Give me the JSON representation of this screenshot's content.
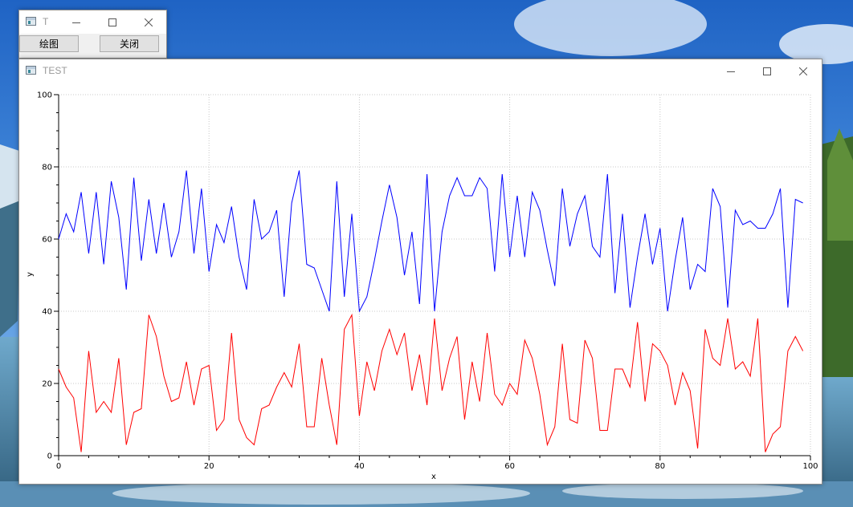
{
  "small_window": {
    "title": "T",
    "draw_button": "绘图",
    "close_button": "关闭"
  },
  "main_window": {
    "title": "TEST"
  },
  "chart_data": {
    "type": "line",
    "xlabel": "x",
    "ylabel": "y",
    "xlim": [
      0,
      100
    ],
    "ylim": [
      0,
      100
    ],
    "x_ticks": [
      0,
      20,
      40,
      60,
      80,
      100
    ],
    "y_ticks": [
      0,
      20,
      40,
      60,
      80,
      100
    ],
    "grid": true,
    "series": [
      {
        "color": "#0000ff",
        "values": [
          60,
          67,
          62,
          73,
          56,
          73,
          53,
          76,
          66,
          46,
          77,
          54,
          71,
          56,
          70,
          55,
          62,
          79,
          56,
          74,
          51,
          64,
          59,
          69,
          55,
          46,
          71,
          60,
          62,
          68,
          44,
          70,
          79,
          53,
          52,
          46,
          40,
          76,
          44,
          67,
          40,
          44,
          54,
          65,
          75,
          66,
          50,
          62,
          42,
          78,
          40,
          62,
          72,
          77,
          72,
          72,
          77,
          74,
          51,
          78,
          55,
          72,
          55,
          73,
          68,
          57,
          47,
          74,
          58,
          67,
          72,
          58,
          55,
          78,
          45,
          67,
          41,
          55,
          67,
          53,
          63,
          40,
          54,
          66,
          46,
          53,
          51,
          74,
          69,
          41,
          68,
          64,
          65,
          63,
          63,
          67,
          74,
          41,
          71,
          70
        ]
      },
      {
        "color": "#ff0000",
        "values": [
          24,
          19,
          16,
          1,
          29,
          12,
          15,
          12,
          27,
          3,
          12,
          13,
          39,
          33,
          22,
          15,
          16,
          26,
          14,
          24,
          25,
          7,
          10,
          34,
          10,
          5,
          3,
          13,
          14,
          19,
          23,
          19,
          31,
          8,
          8,
          27,
          14,
          3,
          35,
          39,
          11,
          26,
          18,
          29,
          35,
          28,
          34,
          18,
          28,
          14,
          38,
          18,
          27,
          33,
          10,
          26,
          15,
          34,
          17,
          14,
          20,
          17,
          32,
          27,
          17,
          3,
          8,
          31,
          10,
          9,
          32,
          27,
          7,
          7,
          24,
          24,
          19,
          37,
          15,
          31,
          29,
          25,
          14,
          23,
          18,
          2,
          35,
          27,
          25,
          38,
          24,
          26,
          22,
          38,
          1,
          6,
          8,
          29,
          33,
          29
        ]
      }
    ]
  }
}
